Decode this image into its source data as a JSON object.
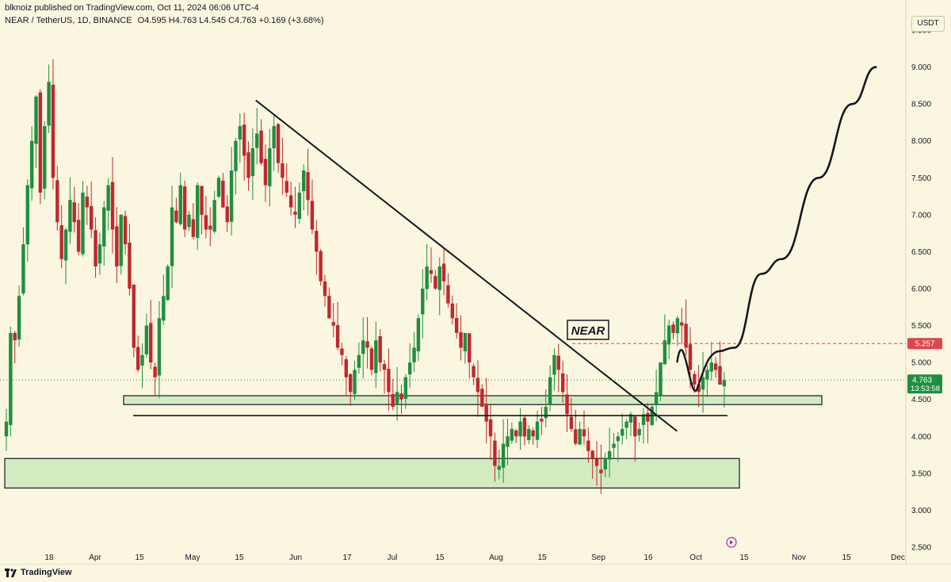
{
  "header": {
    "publisher_line": "blknoiz published on TradingView.com, Oct 11, 2024 06:06 UTC-4",
    "symbol": "NEAR / TetherUS, 1D, BINANCE",
    "ohlc": "O4.595 H4.763 L4.545 C4.763 +0.169 (+3.68%)"
  },
  "price_axis": {
    "unit": "USDT",
    "ticks": [
      "9.500",
      "9.000",
      "8.500",
      "8.000",
      "7.500",
      "7.000",
      "6.500",
      "6.000",
      "5.500",
      "5.000",
      "4.500",
      "4.000",
      "3.500",
      "3.000",
      "2.500"
    ],
    "level_label": "5.257",
    "current_price": "4.763",
    "countdown": "13:53:58"
  },
  "time_axis": {
    "labels": [
      "18",
      "Apr",
      "15",
      "May",
      "15",
      "Jun",
      "17",
      "Jul",
      "15",
      "Aug",
      "15",
      "Sep",
      "16",
      "Oct",
      "15",
      "Nov",
      "15",
      "Dec"
    ]
  },
  "annotations": {
    "tag": "NEAR"
  },
  "colors": {
    "background": "#fbf6e0",
    "bull": "#1f8f3e",
    "bear": "#c0282d",
    "zone_fill": "#d4ebc2",
    "level_line": "#e0454a",
    "current_label": "#1f8f3e"
  },
  "footer": {
    "brand": "TradingView"
  },
  "chart_data": {
    "type": "candlestick",
    "title": "NEAR / TetherUS, 1D, BINANCE",
    "ylim": [
      2.5,
      9.5
    ],
    "x_range": [
      "Mar 12",
      "Dec 2"
    ],
    "closes_path": [
      4.2,
      5.4,
      5.3,
      5.9,
      6.6,
      7.4,
      8.0,
      8.6,
      7.3,
      8.2,
      8.8,
      7.5,
      6.9,
      6.4,
      6.8,
      7.2,
      6.9,
      6.5,
      7.3,
      7.1,
      6.8,
      6.3,
      6.6,
      7.1,
      7.4,
      6.8,
      6.3,
      7.0,
      6.6,
      6.0,
      5.2,
      4.9,
      5.1,
      5.5,
      5.0,
      4.8,
      5.6,
      5.9,
      6.3,
      7.1,
      6.9,
      7.4,
      6.8,
      7.0,
      6.7,
      7.4,
      7.0,
      6.8,
      6.8,
      7.2,
      7.5,
      7.1,
      6.9,
      7.6,
      8.0,
      8.2,
      7.8,
      7.5,
      7.9,
      8.1,
      7.7,
      7.4,
      7.9,
      8.2,
      7.7,
      7.5,
      7.3,
      7.1,
      7.0,
      7.3,
      7.6,
      7.2,
      6.8,
      6.5,
      6.1,
      5.9,
      5.6,
      5.5,
      5.2,
      5.1,
      4.8,
      4.6,
      4.9,
      5.1,
      5.3,
      5.2,
      4.9,
      5.3,
      5.0,
      4.9,
      4.6,
      4.4,
      4.6,
      4.5,
      4.8,
      5.0,
      5.2,
      5.6,
      6.0,
      6.3,
      6.2,
      6.0,
      6.3,
      6.1,
      5.8,
      5.6,
      5.4,
      5.2,
      5.4,
      5.0,
      4.8,
      4.6,
      4.4,
      4.2,
      4.0,
      3.6,
      3.6,
      3.9,
      4.0,
      4.1,
      4.0,
      4.2,
      4.0,
      4.1,
      4.0,
      4.2,
      4.2,
      4.4,
      4.8,
      5.1,
      4.9,
      4.6,
      4.3,
      4.1,
      3.9,
      4.1,
      4.0,
      3.8,
      3.7,
      3.6,
      3.5,
      3.7,
      3.8,
      3.9,
      4.0,
      4.1,
      4.2,
      4.3,
      4.0,
      4.1,
      4.3,
      4.2,
      4.4,
      4.6,
      5.0,
      5.3,
      5.5,
      5.4,
      5.6,
      5.5,
      5.2,
      4.9,
      4.7,
      4.6,
      4.8,
      4.9,
      5.0,
      4.9,
      4.7,
      4.76
    ],
    "levels": {
      "resistance_dashed": 5.257,
      "current": 4.763
    },
    "zones": [
      {
        "label": "",
        "low": 4.43,
        "high": 4.55
      },
      {
        "label": "",
        "low": 3.3,
        "high": 3.7
      }
    ],
    "support_line": 4.28,
    "trendline": {
      "from": [
        "May 25",
        8.55
      ],
      "to": [
        "Sep 27",
        4.07
      ]
    },
    "projection": [
      [
        "Oct 9",
        5.15
      ],
      [
        "Oct 14",
        5.2
      ],
      [
        "Oct 22",
        6.2
      ],
      [
        "Oct 28",
        6.4
      ],
      [
        "Nov 8",
        7.5
      ],
      [
        "Nov 18",
        8.5
      ],
      [
        "Nov 25",
        9.0
      ]
    ]
  }
}
